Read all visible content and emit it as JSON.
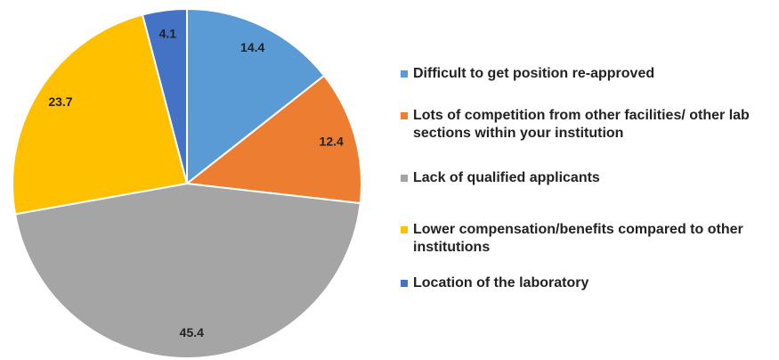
{
  "chart_data": {
    "type": "pie",
    "categories": [
      "Difficult to get position re-approved",
      "Lots of competition from other facilities/ other lab sections within your institution",
      "Lack of qualified applicants",
      "Lower compensation/benefits compared to other institutions",
      "Location of the laboratory"
    ],
    "values": [
      14.4,
      12.4,
      45.4,
      23.7,
      4.1
    ],
    "colors": [
      "#5b9bd5",
      "#ed7d31",
      "#a5a5a5",
      "#ffc000",
      "#4472c4"
    ],
    "legend": "right"
  }
}
